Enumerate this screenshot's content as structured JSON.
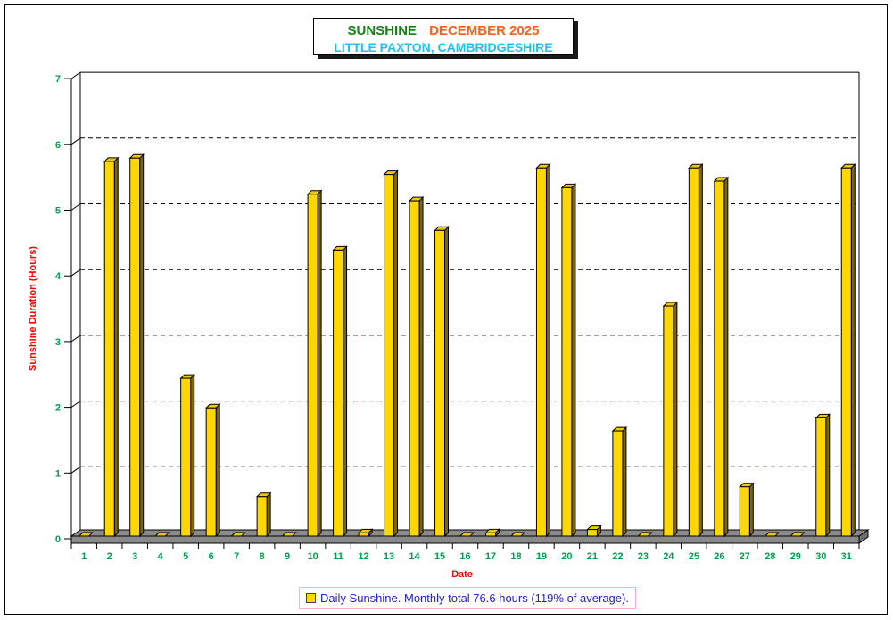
{
  "title_box": {
    "line1_part1": "SUNSHINE",
    "line1_part2": "DECEMBER 2025",
    "line2": "LITTLE PAXTON, CAMBRIDGESHIRE",
    "colors": {
      "sunshine": "#178017",
      "month": "#FF6019",
      "location": "#1BC3F3"
    }
  },
  "legend": {
    "label": "Daily Sunshine. Monthly total 76.6 hours (119% of average).",
    "swatch_color": "#FFD700",
    "text_color": "#2222CC",
    "border_color": "#FFAEC9"
  },
  "chart_data": {
    "type": "bar",
    "style": "3d-vertical-bars",
    "title": "SUNSHINE DECEMBER 2025",
    "subtitle": "LITTLE PAXTON, CAMBRIDGESHIRE",
    "xlabel": "Date",
    "ylabel": "Sunshine Duration (Hours)",
    "ylim": [
      0,
      7
    ],
    "yticks": [
      0,
      1,
      2,
      3,
      4,
      5,
      6,
      7
    ],
    "grid": "dashed-horizontal",
    "legend_position": "bottom",
    "categories": [
      1,
      2,
      3,
      4,
      5,
      6,
      7,
      8,
      9,
      10,
      11,
      12,
      13,
      14,
      15,
      16,
      17,
      18,
      19,
      20,
      21,
      22,
      23,
      24,
      25,
      26,
      27,
      28,
      29,
      30,
      31
    ],
    "values": [
      0,
      5.7,
      5.75,
      0,
      2.4,
      1.95,
      0,
      0.6,
      0,
      5.2,
      4.35,
      0.05,
      5.5,
      5.1,
      4.65,
      0,
      0.05,
      0,
      5.6,
      5.3,
      0.1,
      1.6,
      0,
      3.5,
      5.6,
      5.4,
      0.75,
      0,
      0,
      1.8,
      5.6
    ],
    "monthly_total_hours": 76.6,
    "percent_of_average": 119,
    "colors": {
      "bar_front": "#FFD700",
      "bar_side": "#7D6508",
      "bar_top": "#EEC900",
      "floor": "#8A8A8A",
      "floor_side": "#6E6E6E",
      "axis": "#000000",
      "tick_label": "#00A050",
      "axis_title": "#FF0000"
    }
  }
}
